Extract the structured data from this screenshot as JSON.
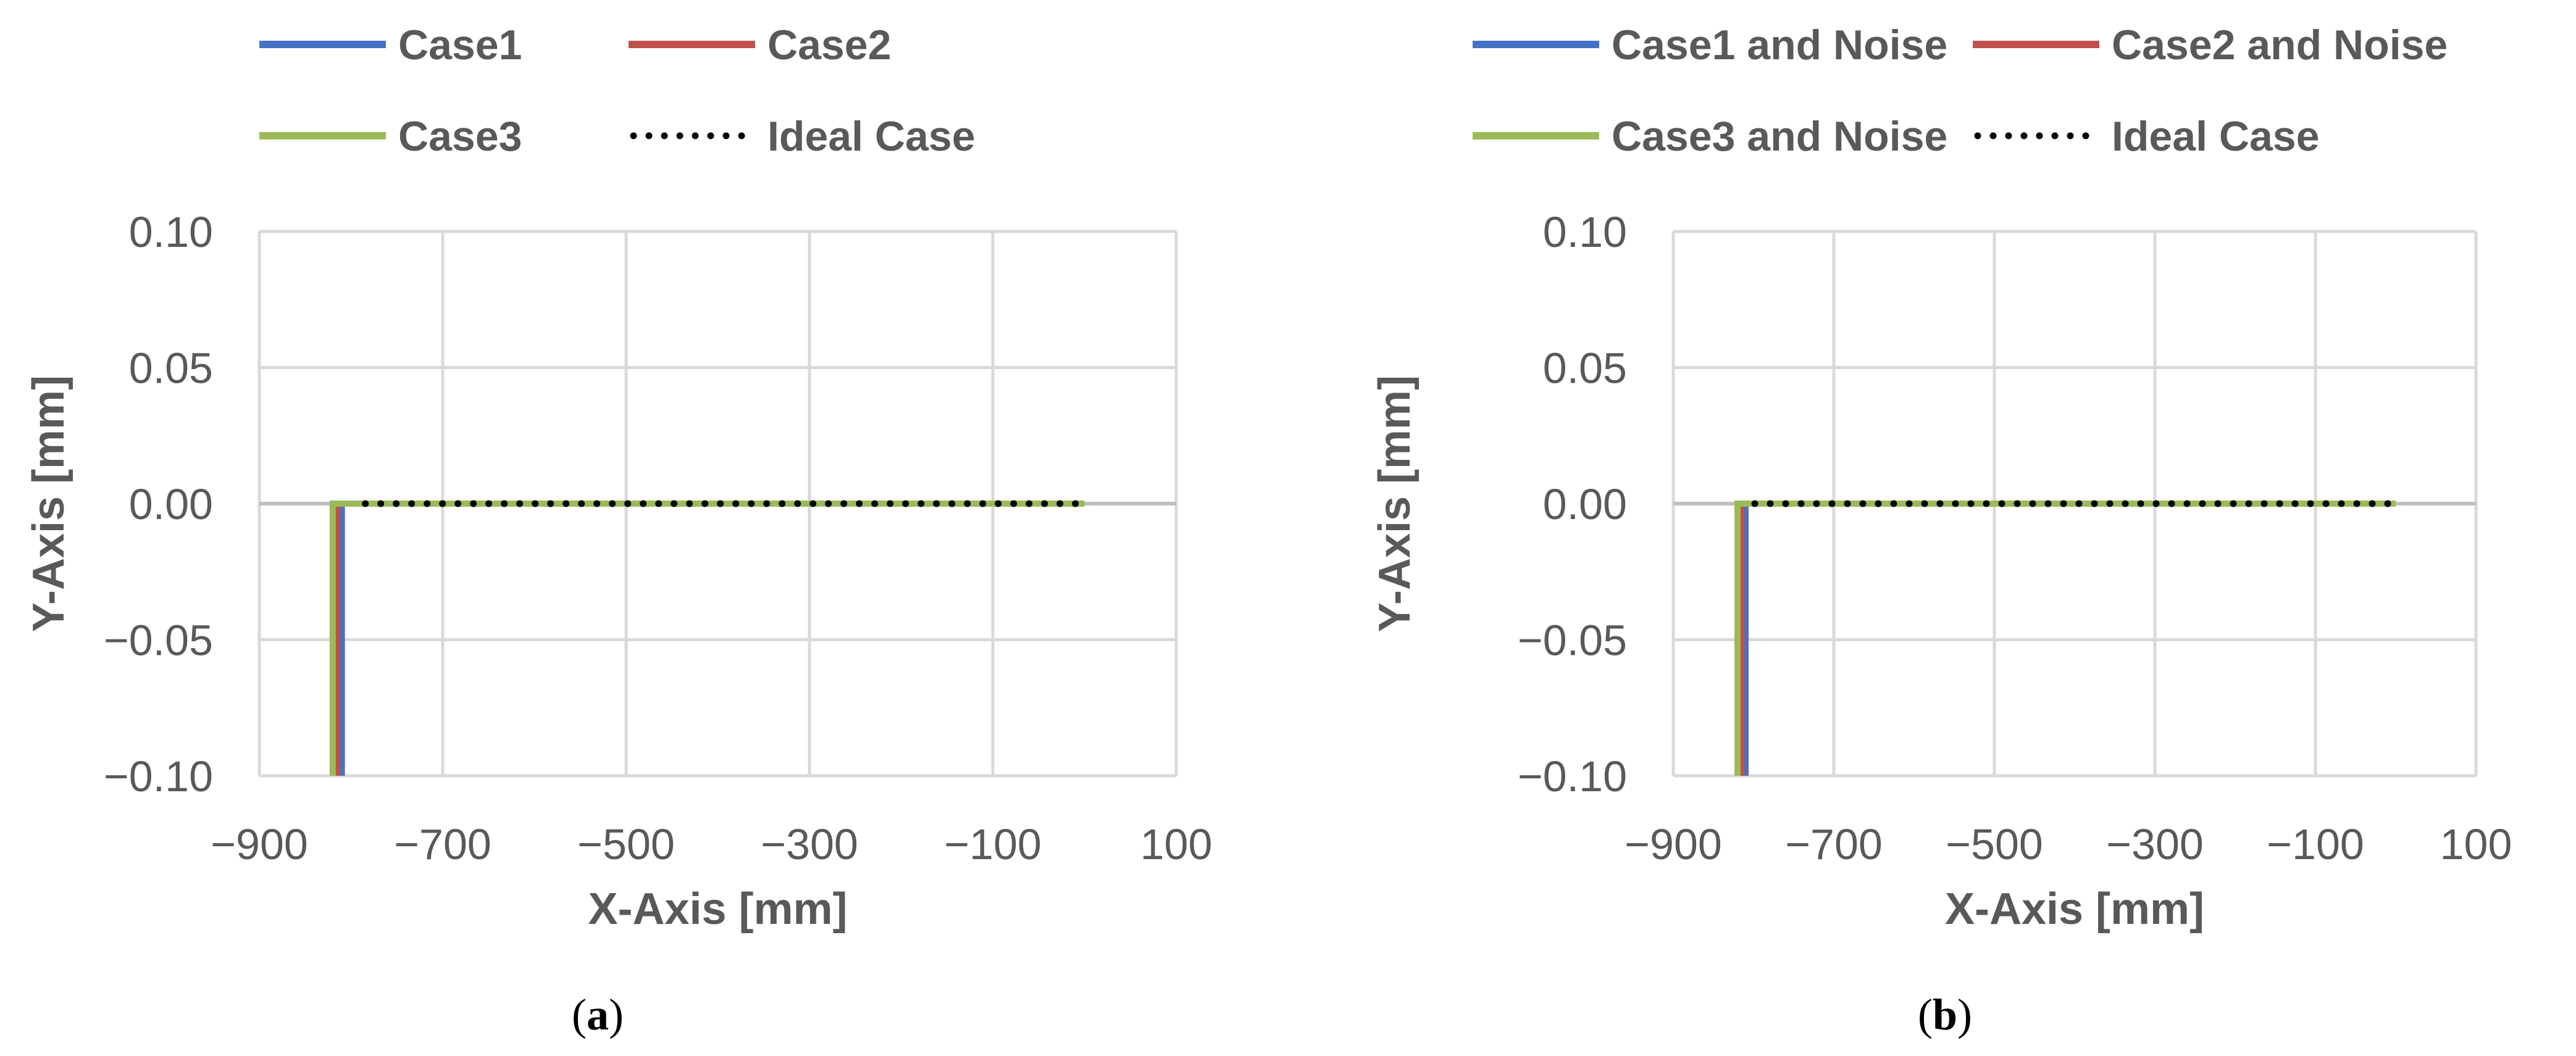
{
  "chart_data": [
    {
      "type": "line",
      "caption": "a",
      "xlabel": "X-Axis [mm]",
      "ylabel": "Y-Axis [mm]",
      "xlim": [
        -900,
        100
      ],
      "ylim": [
        -0.1,
        0.1
      ],
      "xticks": [
        -900,
        -700,
        -500,
        -300,
        -100,
        100
      ],
      "yticks": [
        0.1,
        0.05,
        0.0,
        -0.05,
        -0.1
      ],
      "xtick_labels": [
        "−900",
        "−700",
        "−500",
        "−300",
        "−100",
        "100"
      ],
      "ytick_labels": [
        "0.10",
        "0.05",
        "0.00",
        "−0.05",
        "−0.10"
      ],
      "grid": true,
      "legend_position": "top",
      "series": [
        {
          "name": "Case1",
          "color": "#4472C4",
          "style": "solid",
          "x": [
            0,
            -810,
            -810
          ],
          "y": [
            0,
            0,
            -0.1
          ]
        },
        {
          "name": "Case2",
          "color": "#C0504D",
          "style": "solid",
          "x": [
            0,
            -815,
            -815
          ],
          "y": [
            0,
            0,
            -0.1
          ]
        },
        {
          "name": "Case3",
          "color": "#9BBB59",
          "style": "solid",
          "x": [
            0,
            -820,
            -820
          ],
          "y": [
            0,
            0,
            -0.1
          ]
        },
        {
          "name": "Ideal Case",
          "color": "#000000",
          "style": "dotted",
          "x": [
            -10,
            -800
          ],
          "y": [
            0,
            0
          ]
        }
      ]
    },
    {
      "type": "line",
      "caption": "b",
      "xlabel": "X-Axis [mm]",
      "ylabel": "Y-Axis [mm]",
      "xlim": [
        -900,
        100
      ],
      "ylim": [
        -0.1,
        0.1
      ],
      "xticks": [
        -900,
        -700,
        -500,
        -300,
        -100,
        100
      ],
      "yticks": [
        0.1,
        0.05,
        0.0,
        -0.05,
        -0.1
      ],
      "xtick_labels": [
        "−900",
        "−700",
        "−500",
        "−300",
        "−100",
        "100"
      ],
      "ytick_labels": [
        "0.10",
        "0.05",
        "0.00",
        "−0.05",
        "−0.10"
      ],
      "grid": true,
      "legend_position": "top",
      "series": [
        {
          "name": "Case1 and Noise",
          "color": "#4472C4",
          "style": "solid",
          "x": [
            0,
            -810,
            -810
          ],
          "y": [
            0,
            0,
            -0.1
          ]
        },
        {
          "name": "Case2 and Noise",
          "color": "#C0504D",
          "style": "solid",
          "x": [
            0,
            -815,
            -815
          ],
          "y": [
            0,
            0,
            -0.1
          ]
        },
        {
          "name": "Case3 and Noise",
          "color": "#9BBB59",
          "style": "solid",
          "x": [
            0,
            -820,
            -820
          ],
          "y": [
            0,
            0,
            -0.1
          ]
        },
        {
          "name": "Ideal Case",
          "color": "#000000",
          "style": "dotted",
          "x": [
            -10,
            -800
          ],
          "y": [
            0,
            0
          ]
        }
      ]
    }
  ]
}
